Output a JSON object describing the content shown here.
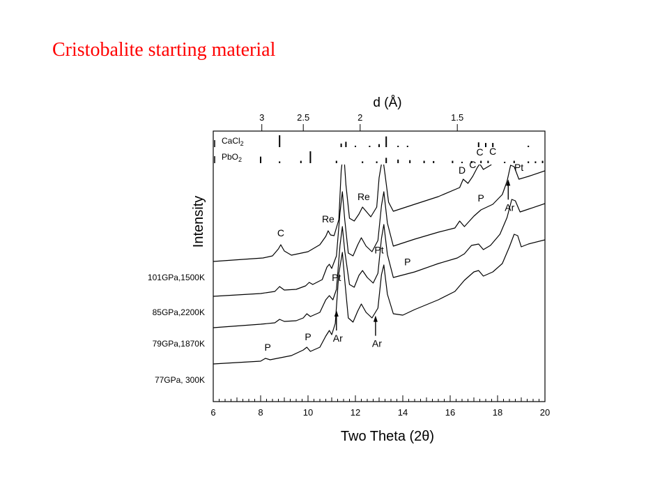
{
  "page": {
    "title": "Cristobalite starting material"
  },
  "chart_data": {
    "type": "line",
    "title": "",
    "xlabel": "Two Theta (2θ)",
    "ylabel": "Intensity",
    "xlim": [
      6,
      20
    ],
    "xticks": [
      6,
      8,
      10,
      12,
      14,
      16,
      18,
      20
    ],
    "grid": false,
    "top_axis": {
      "label": "d (Å)",
      "ticks": [
        {
          "label": "3",
          "two_theta": 8.05
        },
        {
          "label": "2.5",
          "two_theta": 9.8
        },
        {
          "label": "2",
          "two_theta": 12.2
        },
        {
          "label": "1.5",
          "two_theta": 16.3
        }
      ]
    },
    "reference_phases": [
      {
        "name": "CaCl2",
        "sub": "2",
        "base": "CaCl",
        "lines": [
          [
            8.8,
            1.0
          ],
          [
            11.4,
            0.3
          ],
          [
            11.6,
            0.45
          ],
          [
            12.0,
            0.12
          ],
          [
            12.6,
            0.1
          ],
          [
            13.0,
            0.25
          ],
          [
            13.3,
            0.9
          ],
          [
            13.8,
            0.1
          ],
          [
            14.2,
            0.1
          ],
          [
            17.2,
            0.4
          ],
          [
            17.5,
            0.35
          ],
          [
            17.8,
            0.35
          ],
          [
            19.3,
            0.12
          ]
        ]
      },
      {
        "name": "PbO2",
        "sub": "2",
        "base": "PbO",
        "lines": [
          [
            8.0,
            0.55
          ],
          [
            8.8,
            0.15
          ],
          [
            9.7,
            0.2
          ],
          [
            10.1,
            1.0
          ],
          [
            11.2,
            0.2
          ],
          [
            12.3,
            0.15
          ],
          [
            12.9,
            0.15
          ],
          [
            13.3,
            0.45
          ],
          [
            13.8,
            0.3
          ],
          [
            14.3,
            0.25
          ],
          [
            14.9,
            0.2
          ],
          [
            15.3,
            0.18
          ],
          [
            16.1,
            0.2
          ],
          [
            16.5,
            0.12
          ],
          [
            16.9,
            0.18
          ],
          [
            17.3,
            0.2
          ],
          [
            17.6,
            0.2
          ],
          [
            18.3,
            0.12
          ],
          [
            18.7,
            0.2
          ],
          [
            19.3,
            0.15
          ],
          [
            19.6,
            0.15
          ],
          [
            19.9,
            0.2
          ]
        ]
      }
    ],
    "series": [
      {
        "name": "101GPa,1500K",
        "x": [
          6,
          8.1,
          8.5,
          8.75,
          8.85,
          9.0,
          9.3,
          10.0,
          10.5,
          10.75,
          10.85,
          10.95,
          11.1,
          11.3,
          11.4,
          11.5,
          11.6,
          11.75,
          11.95,
          12.15,
          12.3,
          12.45,
          12.65,
          12.9,
          13.0,
          13.15,
          13.25,
          13.4,
          13.6,
          14.5,
          15.5,
          16.4,
          16.55,
          16.75,
          16.95,
          17.15,
          17.25,
          17.4,
          17.7,
          18.1,
          18.4,
          18.55,
          18.65,
          18.8,
          19.0,
          19.4,
          20
        ],
        "y": [
          0,
          5,
          8,
          18,
          24,
          15,
          9,
          14,
          24,
          36,
          44,
          38,
          37,
          60,
          130,
          160,
          110,
          62,
          58,
          68,
          78,
          72,
          64,
          78,
          120,
          150,
          125,
          85,
          72,
          82,
          93,
          106,
          118,
          112,
          122,
          135,
          140,
          132,
          138,
          150,
          168,
          188,
          196,
          190,
          172,
          176,
          184
        ]
      },
      {
        "name": "85GPa,2200K",
        "x": [
          6,
          8.0,
          8.6,
          8.8,
          9.0,
          9.5,
          9.9,
          10.05,
          10.2,
          10.6,
          10.8,
          10.9,
          11.0,
          11.2,
          11.35,
          11.45,
          11.55,
          11.7,
          11.9,
          12.1,
          12.25,
          12.45,
          12.7,
          12.95,
          13.1,
          13.2,
          13.35,
          13.6,
          14.5,
          15.5,
          16.2,
          16.4,
          16.6,
          17.0,
          17.3,
          17.8,
          18.2,
          18.4,
          18.55,
          18.7,
          18.9,
          19.3,
          20
        ],
        "y": [
          0,
          4,
          7,
          14,
          9,
          10,
          15,
          20,
          17,
          24,
          42,
          46,
          40,
          58,
          120,
          150,
          110,
          62,
          58,
          74,
          84,
          72,
          64,
          80,
          130,
          150,
          105,
          72,
          82,
          92,
          98,
          108,
          100,
          115,
          124,
          132,
          146,
          165,
          188,
          186,
          168,
          172,
          180
        ]
      },
      {
        "name": "79GPa,1870K",
        "x": [
          6,
          8.0,
          8.6,
          8.8,
          9.0,
          9.5,
          9.8,
          9.95,
          10.1,
          10.5,
          10.75,
          10.9,
          11.05,
          11.2,
          11.35,
          11.45,
          11.55,
          11.75,
          11.95,
          12.15,
          12.3,
          12.5,
          12.75,
          12.95,
          13.1,
          13.2,
          13.35,
          13.6,
          14.5,
          15.5,
          16.3,
          16.6,
          16.9,
          17.2,
          17.4,
          17.7,
          18.1,
          18.4,
          18.6,
          18.75,
          18.95,
          19.3,
          20
        ],
        "y": [
          0,
          5,
          7,
          12,
          9,
          10,
          14,
          20,
          16,
          22,
          40,
          46,
          40,
          55,
          118,
          145,
          110,
          62,
          58,
          75,
          82,
          72,
          64,
          78,
          128,
          148,
          105,
          72,
          80,
          92,
          100,
          106,
          118,
          120,
          112,
          118,
          134,
          158,
          184,
          182,
          166,
          170,
          178
        ]
      },
      {
        "name": "77GPa, 300K",
        "x": [
          6,
          8.0,
          8.2,
          8.4,
          9.3,
          9.8,
          9.95,
          10.1,
          10.5,
          10.75,
          10.9,
          11.0,
          11.15,
          11.3,
          11.45,
          11.55,
          11.7,
          11.9,
          12.1,
          12.25,
          12.45,
          12.7,
          12.95,
          13.1,
          13.2,
          13.35,
          13.6,
          14.0,
          14.5,
          15.5,
          16.2,
          16.6,
          17.0,
          17.2,
          17.4,
          17.8,
          18.2,
          18.5,
          18.7,
          18.85,
          19.0,
          19.3,
          20
        ],
        "y": [
          0,
          4,
          8,
          6,
          12,
          20,
          24,
          18,
          24,
          40,
          48,
          42,
          58,
          130,
          160,
          120,
          66,
          60,
          76,
          86,
          74,
          66,
          80,
          128,
          142,
          100,
          72,
          70,
          78,
          92,
          104,
          120,
          132,
          134,
          126,
          132,
          144,
          168,
          186,
          184,
          168,
          172,
          178
        ]
      }
    ],
    "annotations": [
      {
        "text": "C",
        "series": "101GPa,1500K",
        "x": 8.85
      },
      {
        "text": "Re",
        "series": "101GPa,1500K",
        "x": 10.85
      },
      {
        "text": "Re",
        "series": "101GPa,1500K",
        "x": 12.35
      },
      {
        "text": "D",
        "series": "101GPa,1500K",
        "x": 16.5
      },
      {
        "text": "C",
        "series": "101GPa,1500K",
        "x": 16.95
      },
      {
        "text": "C",
        "series": "101GPa,1500K",
        "x": 17.25
      },
      {
        "text": "C",
        "series": "101GPa,1500K",
        "x": 17.8
      },
      {
        "text": "P",
        "series": "85GPa,2200K",
        "x": 17.3
      },
      {
        "text": "Pt",
        "series": "85GPa,2200K",
        "x": 18.9
      },
      {
        "text": "Ar",
        "series": "85GPa,2200K",
        "x": 18.45
      },
      {
        "text": "Pt",
        "series": "79GPa,1870K",
        "x": 11.2
      },
      {
        "text": "Pt",
        "series": "79GPa,1870K",
        "x": 13.0
      },
      {
        "text": "P",
        "series": "79GPa,1870K",
        "x": 14.2
      },
      {
        "text": "Ar",
        "series": "77GPa, 300K",
        "x": 11.2
      },
      {
        "text": "Ar",
        "series": "77GPa, 300K",
        "x": 12.85
      },
      {
        "text": "P",
        "series": "77GPa, 300K",
        "x": 10.0
      },
      {
        "text": "P",
        "series": "77GPa, 300K",
        "x": 8.3
      }
    ]
  }
}
